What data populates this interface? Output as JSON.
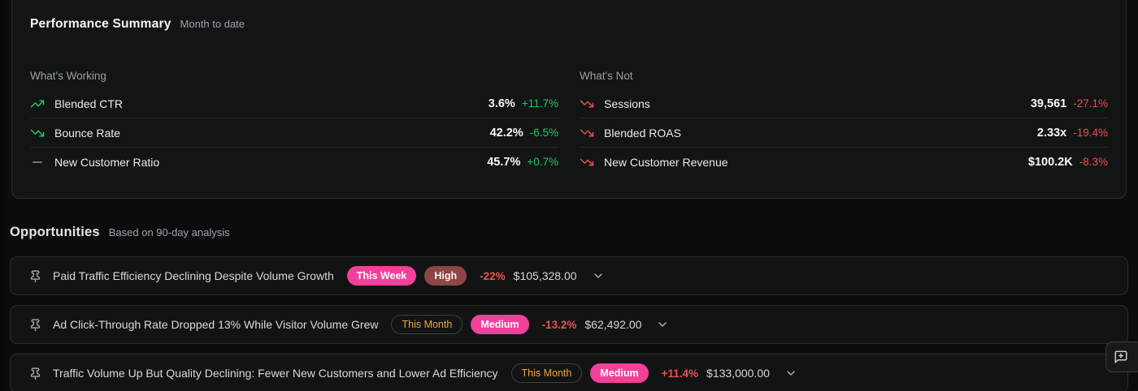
{
  "theme": {
    "page_bg": "#0b0c0c",
    "panel_bg": "#131515",
    "card_bg": "#121414",
    "green": "#22c55e",
    "red": "#ef4c4c",
    "gray": "#8b9290",
    "pink": "#f2409b",
    "maroon": "#8d4646",
    "amber": "#f0a63a"
  },
  "performance_summary": {
    "title": "Performance Summary",
    "subtitle": "Month to date",
    "columns": [
      {
        "heading": "What's Working",
        "rows": [
          {
            "icon": "trending-up",
            "icon_color": "green",
            "label": "Blended CTR",
            "value": "3.6%",
            "delta": "+11.7%",
            "delta_color": "green"
          },
          {
            "icon": "trending-down",
            "icon_color": "green",
            "label": "Bounce Rate",
            "value": "42.2%",
            "delta": "-6.5%",
            "delta_color": "green"
          },
          {
            "icon": "minus",
            "icon_color": "gray",
            "label": "New Customer Ratio",
            "value": "45.7%",
            "delta": "+0.7%",
            "delta_color": "green"
          }
        ]
      },
      {
        "heading": "What's Not",
        "rows": [
          {
            "icon": "trending-down",
            "icon_color": "red",
            "label": "Sessions",
            "value": "39,561",
            "delta": "-27.1%",
            "delta_color": "red"
          },
          {
            "icon": "trending-down",
            "icon_color": "red",
            "label": "Blended ROAS",
            "value": "2.33x",
            "delta": "-19.4%",
            "delta_color": "red"
          },
          {
            "icon": "trending-down",
            "icon_color": "red",
            "label": "New Customer Revenue",
            "value": "$100.2K",
            "delta": "-8.3%",
            "delta_color": "red"
          }
        ]
      }
    ]
  },
  "opportunities": {
    "title": "Opportunities",
    "subtitle": "Based on 90-day analysis",
    "items": [
      {
        "title": "Paid Traffic Efficiency Declining Despite Volume Growth",
        "timeframe": {
          "label": "This Week",
          "style": "pink-filled"
        },
        "priority": {
          "label": "High",
          "style": "maroon-filled"
        },
        "delta": "-22%",
        "amount": "$105,328.00"
      },
      {
        "title": "Ad Click-Through Rate Dropped 13% While Visitor Volume Grew",
        "timeframe": {
          "label": "This Month",
          "style": "outline-amber"
        },
        "priority": {
          "label": "Medium",
          "style": "pink-filled"
        },
        "delta": "-13.2%",
        "amount": "$62,492.00"
      },
      {
        "title": "Traffic Volume Up But Quality Declining: Fewer New Customers and Lower Ad Efficiency",
        "timeframe": {
          "label": "This Month",
          "style": "outline-amber"
        },
        "priority": {
          "label": "Medium",
          "style": "pink-filled"
        },
        "delta": "+11.4%",
        "amount": "$133,000.00"
      }
    ]
  },
  "floating_button": {
    "icon": "message-square-plus"
  }
}
